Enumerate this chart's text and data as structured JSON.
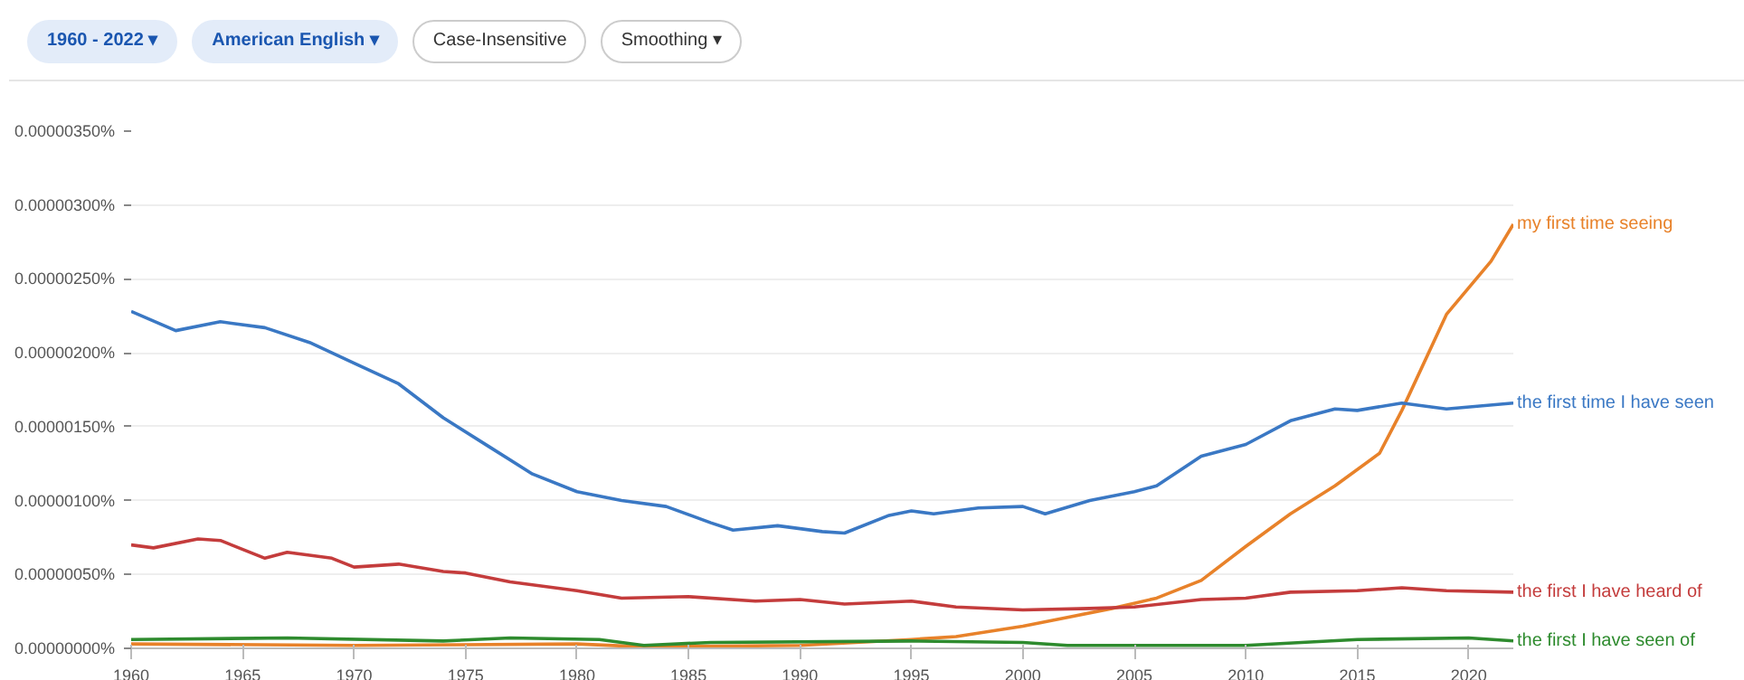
{
  "chart_data": {
    "type": "line",
    "legend": false,
    "grid": "y",
    "line_style": "solid",
    "annotations": [
      "1960 - 2022 ▾",
      "American English ▾",
      "Case-Insensitive",
      "Smoothing ▾"
    ],
    "xlim": [
      1960,
      2022
    ],
    "xticks": [
      1960,
      1965,
      1970,
      1975,
      1980,
      1985,
      1990,
      1995,
      2000,
      2005,
      2010,
      2015,
      2020
    ],
    "ylim": [
      0,
      3.5e-06
    ],
    "yticks": [
      {
        "value": 0,
        "label": "0.00000000%"
      },
      {
        "value": 5e-07,
        "label": "0.00000050%"
      },
      {
        "value": 1e-06,
        "label": "0.00000100%"
      },
      {
        "value": 1.5e-06,
        "label": "0.00000150%"
      },
      {
        "value": 2e-06,
        "label": "0.00000200%"
      },
      {
        "value": 2.5e-06,
        "label": "0.00000250%"
      },
      {
        "value": 3e-06,
        "label": "0.00000300%"
      },
      {
        "value": 3.5e-06,
        "label": "0.00000350%"
      }
    ],
    "series": [
      {
        "name": "my first time seeing",
        "color": "#e8822a",
        "x": [
          1960,
          1970,
          1980,
          1983,
          1990,
          1995,
          1997,
          2000,
          2002,
          2004,
          2006,
          2008,
          2010,
          2012,
          2014,
          2016,
          2017,
          2019,
          2021,
          2022
        ],
        "values": [
          3e-08,
          2e-08,
          3e-08,
          1e-08,
          2e-08,
          6e-08,
          8e-08,
          1.5e-07,
          2.1e-07,
          2.7e-07,
          3.4e-07,
          4.6e-07,
          6.9e-07,
          9.1e-07,
          1.1e-06,
          1.32e-06,
          1.61e-06,
          2.26e-06,
          2.62e-06,
          2.87e-06
        ]
      },
      {
        "name": "the first time I have seen",
        "color": "#3a78c4",
        "x": [
          1960,
          1962,
          1964,
          1966,
          1968,
          1970,
          1972,
          1974,
          1976,
          1978,
          1980,
          1982,
          1984,
          1986,
          1987,
          1989,
          1991,
          1992,
          1994,
          1995,
          1996,
          1998,
          2000,
          2001,
          2003,
          2005,
          2006,
          2008,
          2010,
          2012,
          2014,
          2015,
          2017,
          2019,
          2022
        ],
        "values": [
          2.28e-06,
          2.15e-06,
          2.21e-06,
          2.17e-06,
          2.07e-06,
          1.93e-06,
          1.79e-06,
          1.56e-06,
          1.37e-06,
          1.18e-06,
          1.06e-06,
          1e-06,
          9.6e-07,
          8.5e-07,
          8e-07,
          8.3e-07,
          7.9e-07,
          7.8e-07,
          9e-07,
          9.3e-07,
          9.1e-07,
          9.5e-07,
          9.6e-07,
          9.1e-07,
          1e-06,
          1.06e-06,
          1.1e-06,
          1.3e-06,
          1.38e-06,
          1.54e-06,
          1.62e-06,
          1.61e-06,
          1.66e-06,
          1.62e-06,
          1.66e-06
        ]
      },
      {
        "name": "the first I have heard of",
        "color": "#c43c3c",
        "x": [
          1960,
          1961,
          1963,
          1964,
          1966,
          1967,
          1969,
          1970,
          1972,
          1974,
          1975,
          1977,
          1980,
          1982,
          1985,
          1988,
          1990,
          1992,
          1995,
          1997,
          2000,
          2003,
          2005,
          2008,
          2010,
          2012,
          2015,
          2017,
          2019,
          2022
        ],
        "values": [
          7e-07,
          6.8e-07,
          7.4e-07,
          7.3e-07,
          6.1e-07,
          6.5e-07,
          6.1e-07,
          5.5e-07,
          5.7e-07,
          5.2e-07,
          5.1e-07,
          4.5e-07,
          3.9e-07,
          3.4e-07,
          3.5e-07,
          3.2e-07,
          3.3e-07,
          3e-07,
          3.2e-07,
          2.8e-07,
          2.6e-07,
          2.7e-07,
          2.8e-07,
          3.3e-07,
          3.4e-07,
          3.8e-07,
          3.9e-07,
          4.1e-07,
          3.9e-07,
          3.8e-07
        ]
      },
      {
        "name": "the first I have seen of",
        "color": "#2e8b2e",
        "x": [
          1960,
          1967,
          1974,
          1977,
          1981,
          1983,
          1986,
          1995,
          2000,
          2002,
          2010,
          2015,
          2020,
          2022
        ],
        "values": [
          6e-08,
          7e-08,
          5e-08,
          7e-08,
          6e-08,
          2e-08,
          4e-08,
          5e-08,
          4e-08,
          2e-08,
          2e-08,
          6e-08,
          7e-08,
          5e-08
        ]
      }
    ]
  }
}
